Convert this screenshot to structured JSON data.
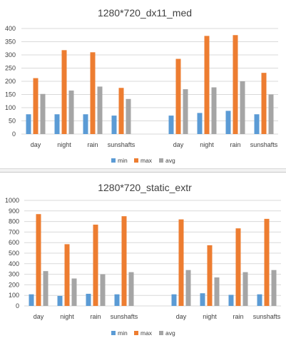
{
  "colors": {
    "min": "#5b9bd5",
    "max": "#ed7d31",
    "avg": "#a5a5a5",
    "grid": "#d9d9d9",
    "text": "#404040"
  },
  "chart_data": [
    {
      "type": "bar",
      "title": "1280*720_dx11_med",
      "categories": [
        "day",
        "night",
        "rain",
        "sunshafts",
        "",
        "day",
        "night",
        "rain",
        "sunshafts"
      ],
      "series": [
        {
          "name": "min",
          "values": [
            75,
            75,
            75,
            70,
            null,
            70,
            80,
            88,
            75
          ]
        },
        {
          "name": "max",
          "values": [
            212,
            318,
            310,
            175,
            null,
            285,
            372,
            375,
            232
          ]
        },
        {
          "name": "avg",
          "values": [
            152,
            165,
            180,
            133,
            null,
            170,
            177,
            200,
            150
          ]
        }
      ],
      "ylim": [
        0,
        400
      ],
      "yticks": [
        0,
        50,
        100,
        150,
        200,
        250,
        300,
        350,
        400
      ],
      "xlabel": "",
      "ylabel": "",
      "grid": true,
      "legend": "bottom"
    },
    {
      "type": "bar",
      "title": "1280*720_static_extr",
      "categories": [
        "day",
        "night",
        "rain",
        "sunshafts",
        "",
        "day",
        "night",
        "rain",
        "sunshafts"
      ],
      "series": [
        {
          "name": "min",
          "values": [
            110,
            95,
            115,
            110,
            null,
            110,
            120,
            105,
            110
          ]
        },
        {
          "name": "max",
          "values": [
            870,
            585,
            770,
            850,
            null,
            820,
            575,
            735,
            825
          ]
        },
        {
          "name": "avg",
          "values": [
            330,
            260,
            300,
            320,
            null,
            340,
            270,
            320,
            340
          ]
        }
      ],
      "ylim": [
        0,
        1000
      ],
      "yticks": [
        0,
        100,
        200,
        300,
        400,
        500,
        600,
        700,
        800,
        900,
        1000
      ],
      "xlabel": "",
      "ylabel": "",
      "grid": true,
      "legend": "bottom"
    }
  ]
}
